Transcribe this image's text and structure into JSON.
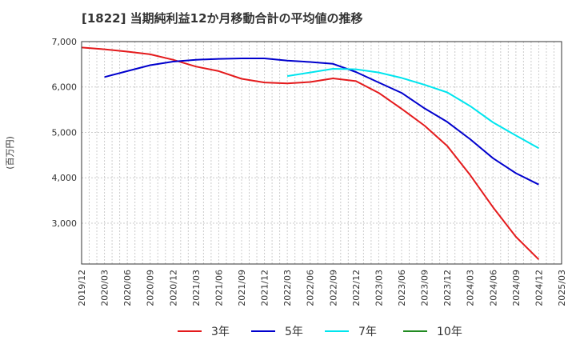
{
  "chart_data": {
    "type": "line",
    "title": "[1822]  当期純利益12か月移動合計の平均値の推移",
    "ylabel": "(百万円)",
    "xlabel": "",
    "ylim": [
      2100,
      7000
    ],
    "yticks": [
      3000,
      4000,
      5000,
      6000,
      7000
    ],
    "ytick_labels": [
      "3,000",
      "4,000",
      "5,000",
      "6,000",
      "7,000"
    ],
    "x_categories": [
      "2019/12",
      "2020/03",
      "2020/06",
      "2020/09",
      "2020/12",
      "2021/03",
      "2021/06",
      "2021/09",
      "2021/12",
      "2022/03",
      "2022/06",
      "2022/09",
      "2022/12",
      "2023/03",
      "2023/06",
      "2023/09",
      "2023/12",
      "2024/03",
      "2024/06",
      "2024/09",
      "2024/12",
      "2025/03"
    ],
    "grid": true,
    "legend_position": "bottom",
    "series": [
      {
        "name": "3年",
        "color": "#e41a1c",
        "points": [
          [
            "2019/12",
            6870
          ],
          [
            "2020/03",
            6830
          ],
          [
            "2020/06",
            6780
          ],
          [
            "2020/09",
            6720
          ],
          [
            "2020/12",
            6600
          ],
          [
            "2021/03",
            6450
          ],
          [
            "2021/06",
            6350
          ],
          [
            "2021/09",
            6180
          ],
          [
            "2021/12",
            6100
          ],
          [
            "2022/03",
            6080
          ],
          [
            "2022/06",
            6110
          ],
          [
            "2022/09",
            6190
          ],
          [
            "2022/12",
            6130
          ],
          [
            "2023/03",
            5870
          ],
          [
            "2023/06",
            5520
          ],
          [
            "2023/09",
            5150
          ],
          [
            "2023/12",
            4700
          ],
          [
            "2024/03",
            4060
          ],
          [
            "2024/06",
            3350
          ],
          [
            "2024/09",
            2700
          ],
          [
            "2024/12",
            2200
          ]
        ]
      },
      {
        "name": "5年",
        "color": "#0000cd",
        "points": [
          [
            "2020/03",
            6220
          ],
          [
            "2020/06",
            6350
          ],
          [
            "2020/09",
            6480
          ],
          [
            "2020/12",
            6560
          ],
          [
            "2021/03",
            6600
          ],
          [
            "2021/06",
            6620
          ],
          [
            "2021/09",
            6630
          ],
          [
            "2021/12",
            6630
          ],
          [
            "2022/03",
            6580
          ],
          [
            "2022/06",
            6550
          ],
          [
            "2022/09",
            6510
          ],
          [
            "2022/12",
            6330
          ],
          [
            "2023/03",
            6100
          ],
          [
            "2023/06",
            5870
          ],
          [
            "2023/09",
            5530
          ],
          [
            "2023/12",
            5230
          ],
          [
            "2024/03",
            4850
          ],
          [
            "2024/06",
            4430
          ],
          [
            "2024/09",
            4100
          ],
          [
            "2024/12",
            3850
          ]
        ]
      },
      {
        "name": "7年",
        "color": "#00e5ee",
        "points": [
          [
            "2022/03",
            6240
          ],
          [
            "2022/06",
            6320
          ],
          [
            "2022/09",
            6400
          ],
          [
            "2022/12",
            6390
          ],
          [
            "2023/03",
            6320
          ],
          [
            "2023/06",
            6200
          ],
          [
            "2023/09",
            6050
          ],
          [
            "2023/12",
            5880
          ],
          [
            "2024/03",
            5580
          ],
          [
            "2024/06",
            5220
          ],
          [
            "2024/09",
            4930
          ],
          [
            "2024/12",
            4650
          ]
        ]
      },
      {
        "name": "10年",
        "color": "#228b22",
        "points": []
      }
    ]
  }
}
